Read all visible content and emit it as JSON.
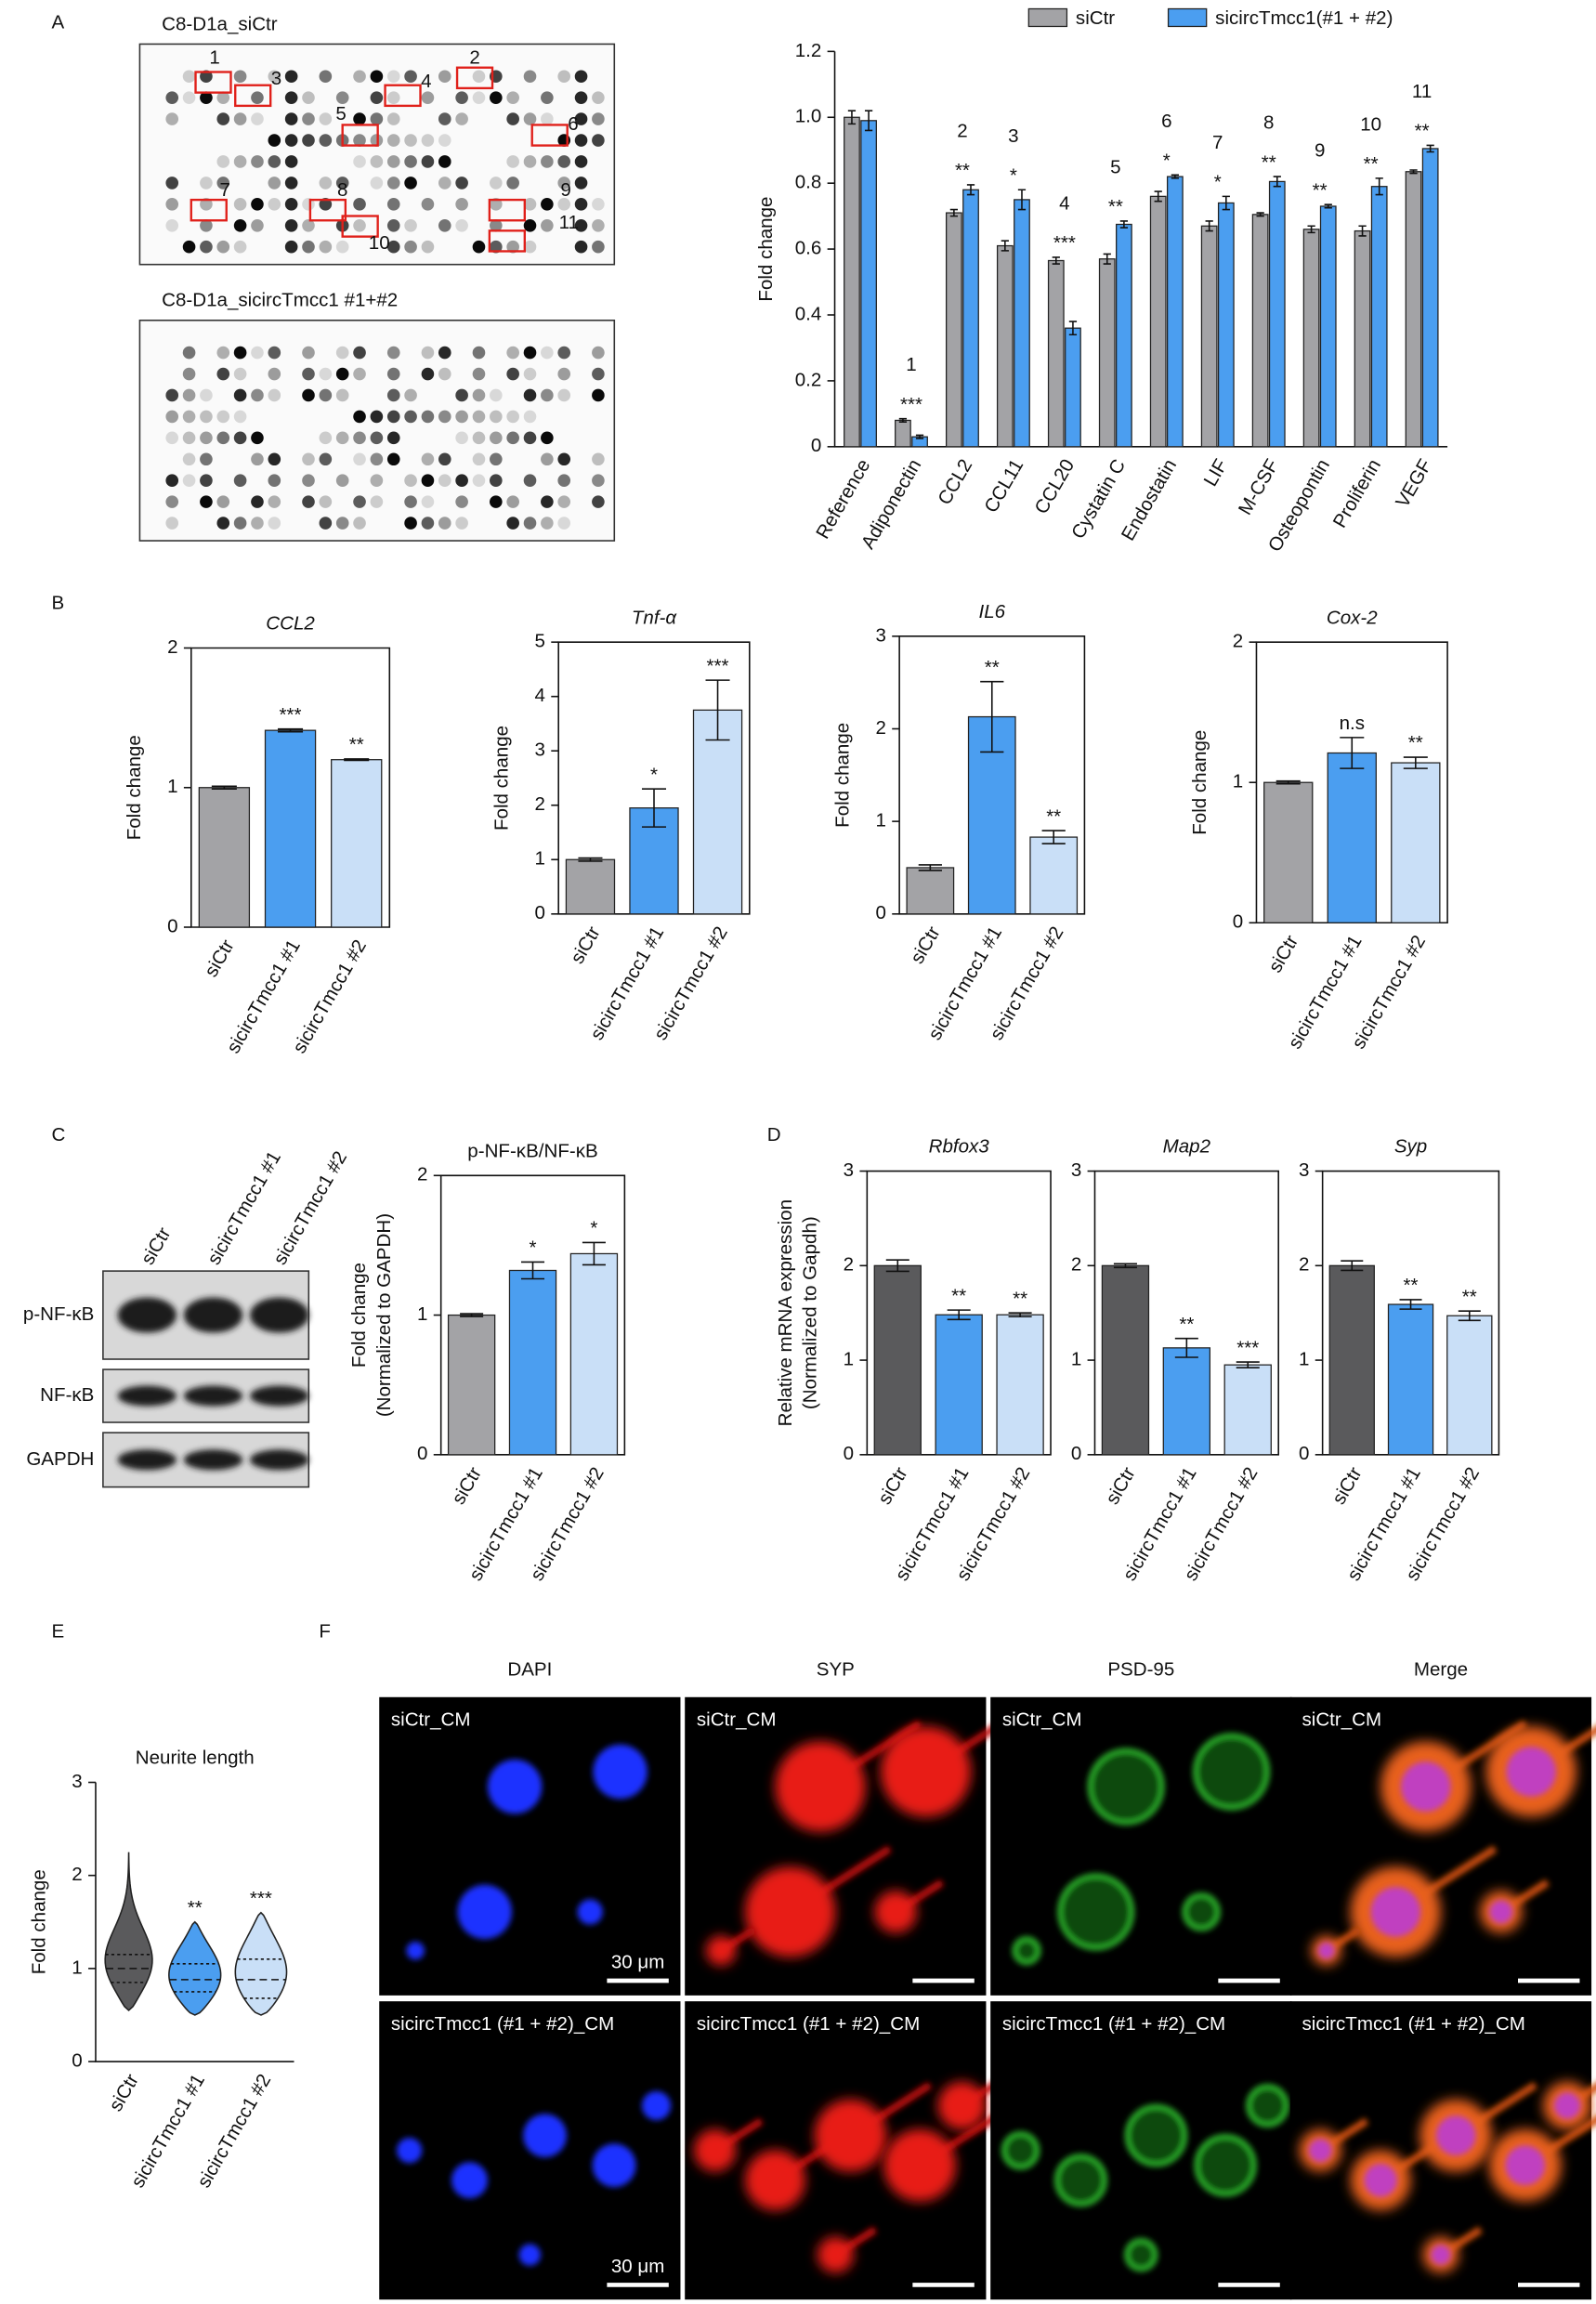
{
  "panels": [
    "A",
    "B",
    "C",
    "D",
    "E",
    "F"
  ],
  "antibody_array": {
    "titles": [
      "C8-D1a_siCtr",
      "C8-D1a_sicircTmcc1 #1+#2"
    ],
    "spot_labels": [
      "1",
      "2",
      "3",
      "4",
      "5",
      "6",
      "7",
      "8",
      "9",
      "10",
      "11"
    ]
  },
  "western_blot": {
    "lanes": [
      "siCtr",
      "sicircTmcc1 #1",
      "sicircTmcc1 #2"
    ],
    "rows": [
      "p-NF-κB",
      "NF-κB",
      "GAPDH"
    ]
  },
  "micrographs": {
    "columns": [
      "DAPI",
      "SYP",
      "PSD-95",
      "Merge"
    ],
    "rows": [
      "siCtr_CM",
      "sicircTmcc1 (#1 + #2)_CM"
    ],
    "scale_bar": "30 μm"
  },
  "chart_data": [
    {
      "type": "bar",
      "ylabel": [
        "Fold change"
      ],
      "categories": [
        "Reference",
        "Adiponectin",
        "CCL2",
        "CCL11",
        "CCL20",
        "Cystatin C",
        "Endostatin",
        "LIF",
        "M-CSF",
        "Osteopontin",
        "Proliferin",
        "VEGF"
      ],
      "series": [
        {
          "name": "siCtr",
          "color": "#a3a3a6",
          "values": [
            1.0,
            0.08,
            0.71,
            0.61,
            0.565,
            0.57,
            0.76,
            0.67,
            0.705,
            0.66,
            0.655,
            0.835
          ],
          "errors": [
            0.02,
            0.005,
            0.01,
            0.015,
            0.01,
            0.015,
            0.015,
            0.015,
            0.005,
            0.01,
            0.015,
            0.005
          ]
        },
        {
          "name": "sicircTmcc1(#1 + #2)",
          "color": "#4b9ef0",
          "values": [
            0.99,
            0.03,
            0.78,
            0.75,
            0.36,
            0.675,
            0.82,
            0.74,
            0.805,
            0.73,
            0.79,
            0.905
          ],
          "errors": [
            0.03,
            0.005,
            0.015,
            0.03,
            0.02,
            0.01,
            0.005,
            0.02,
            0.015,
            0.005,
            0.025,
            0.01
          ]
        }
      ],
      "spot_numbers": [
        null,
        "1",
        "2",
        "3",
        "4",
        "5",
        "6",
        "7",
        "8",
        "9",
        "10",
        "11"
      ],
      "significance": [
        null,
        "***",
        "**",
        "*",
        "***",
        "**",
        "*",
        "*",
        "**",
        "**",
        "**",
        "**"
      ],
      "ylim": [
        0,
        1.2
      ],
      "yticks": [
        0,
        0.2,
        0.4,
        0.6,
        0.8,
        {
          "value": 1,
          "label": "1.0"
        },
        1.2
      ],
      "legend": "top"
    },
    {
      "type": "bar",
      "title": "CCL2",
      "ylabel": [
        "Fold change"
      ],
      "categories": [
        "siCtr",
        "sicircTmcc1 #1",
        "sicircTmcc1 #2"
      ],
      "colors": [
        "#a3a3a6",
        "#4b9ef0",
        "#c9dff7"
      ],
      "values": [
        1.0,
        1.41,
        1.2
      ],
      "errors": [
        0.01,
        0.01,
        0.005
      ],
      "significance": [
        null,
        "***",
        "**"
      ],
      "ylim": [
        0,
        2
      ],
      "yticks": [
        0,
        1,
        2
      ]
    },
    {
      "type": "bar",
      "title": "Tnf-α",
      "ylabel": [
        "Fold change"
      ],
      "categories": [
        "siCtr",
        "sicircTmcc1 #1",
        "sicircTmcc1 #2"
      ],
      "colors": [
        "#a3a3a6",
        "#4b9ef0",
        "#c9dff7"
      ],
      "values": [
        1.0,
        1.95,
        3.75
      ],
      "errors": [
        0.03,
        0.35,
        0.55
      ],
      "significance": [
        null,
        "*",
        "***"
      ],
      "ylim": [
        0,
        5
      ],
      "yticks": [
        0,
        1,
        2,
        3,
        4,
        5
      ]
    },
    {
      "type": "bar",
      "title": "IL6",
      "ylabel": [
        "Fold change"
      ],
      "categories": [
        "siCtr",
        "sicircTmcc1 #1",
        "sicircTmcc1 #2"
      ],
      "colors": [
        "#a3a3a6",
        "#4b9ef0",
        "#c9dff7"
      ],
      "values": [
        0.5,
        2.13,
        0.83
      ],
      "errors": [
        0.03,
        0.38,
        0.07
      ],
      "significance": [
        null,
        "**",
        "**"
      ],
      "ylim": [
        0,
        3
      ],
      "yticks": [
        0,
        1,
        2,
        3
      ]
    },
    {
      "type": "bar",
      "title": "Cox-2",
      "ylabel": [
        "Fold change"
      ],
      "categories": [
        "siCtr",
        "sicircTmcc1 #1",
        "sicircTmcc1 #2"
      ],
      "colors": [
        "#a3a3a6",
        "#4b9ef0",
        "#c9dff7"
      ],
      "values": [
        1.0,
        1.21,
        1.14
      ],
      "errors": [
        0.01,
        0.11,
        0.04
      ],
      "significance": [
        null,
        "n.s",
        "**"
      ],
      "ylim": [
        0,
        2
      ],
      "yticks": [
        0,
        1,
        2
      ]
    },
    {
      "type": "bar",
      "title": "p-NF-κB/NF-κB",
      "ylabel": [
        "Fold change",
        "(Normalized to GAPDH)"
      ],
      "categories": [
        "siCtr",
        "sicircTmcc1 #1",
        "sicircTmcc1 #2"
      ],
      "colors": [
        "#a3a3a6",
        "#4b9ef0",
        "#c9dff7"
      ],
      "values": [
        1.0,
        1.32,
        1.44
      ],
      "errors": [
        0.01,
        0.06,
        0.08
      ],
      "significance": [
        null,
        "*",
        "*"
      ],
      "ylim": [
        0,
        2
      ],
      "yticks": [
        0,
        1,
        2
      ]
    },
    {
      "type": "bar",
      "title": "Rbfox3",
      "ylabel": [
        "Relative mRNA expression",
        "(Normalized to Gapdh)"
      ],
      "categories": [
        "siCtr",
        "sicircTmcc1 #1",
        "sicircTmcc1 #2"
      ],
      "colors": [
        "#5a5a5c",
        "#4b9ef0",
        "#c9dff7"
      ],
      "values": [
        2.0,
        1.48,
        1.48
      ],
      "errors": [
        0.06,
        0.05,
        0.02
      ],
      "significance": [
        null,
        "**",
        "**"
      ],
      "ylim": [
        0,
        3
      ],
      "yticks": [
        0,
        1,
        2,
        3
      ]
    },
    {
      "type": "bar",
      "title": "Map2",
      "categories": [
        "siCtr",
        "sicircTmcc1 #1",
        "sicircTmcc1 #2"
      ],
      "colors": [
        "#5a5a5c",
        "#4b9ef0",
        "#c9dff7"
      ],
      "values": [
        2.0,
        1.13,
        0.95
      ],
      "errors": [
        0.02,
        0.1,
        0.03
      ],
      "significance": [
        null,
        "**",
        "***"
      ],
      "ylim": [
        0,
        3
      ],
      "yticks": [
        0,
        1,
        2,
        3
      ]
    },
    {
      "type": "bar",
      "title": "Syp",
      "categories": [
        "siCtr",
        "sicircTmcc1 #1",
        "sicircTmcc1 #2"
      ],
      "colors": [
        "#5a5a5c",
        "#4b9ef0",
        "#c9dff7"
      ],
      "values": [
        2.0,
        1.59,
        1.47
      ],
      "errors": [
        0.05,
        0.05,
        0.05
      ],
      "significance": [
        null,
        "**",
        "**"
      ],
      "ylim": [
        0,
        3
      ],
      "yticks": [
        0,
        1,
        2,
        3
      ]
    },
    {
      "type": "violin",
      "title": "Neurite length",
      "ylabel": [
        "Fold change"
      ],
      "categories": [
        "siCtr",
        "sicircTmcc1 #1",
        "sicircTmcc1 #2"
      ],
      "colors": [
        "#5a5a5c",
        "#4b9ef0",
        "#c9dff7"
      ],
      "stats": [
        {
          "min": 0.55,
          "q1": 0.85,
          "median": 1.0,
          "q3": 1.15,
          "max": 2.25
        },
        {
          "min": 0.5,
          "q1": 0.75,
          "median": 0.88,
          "q3": 1.05,
          "max": 1.5
        },
        {
          "min": 0.5,
          "q1": 0.68,
          "median": 0.88,
          "q3": 1.1,
          "max": 1.6
        }
      ],
      "significance": [
        null,
        "**",
        "***"
      ],
      "ylim": [
        0,
        3
      ],
      "yticks": [
        0,
        1,
        2,
        3
      ]
    }
  ]
}
